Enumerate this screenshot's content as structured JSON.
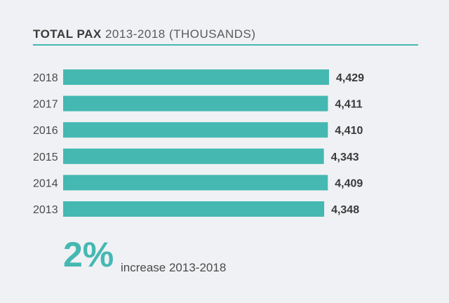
{
  "title": {
    "bold": "TOTAL PAX",
    "rest": "2013-2018 (THOUSANDS)"
  },
  "summary": {
    "value": "2%",
    "caption": "increase 2013-2018"
  },
  "colors": {
    "bar": "#45b8b2",
    "accent": "#45b8b2",
    "text": "#4a4a4a",
    "background": "#f0f1f4"
  },
  "chart_data": {
    "type": "bar",
    "orientation": "horizontal",
    "title": "TOTAL PAX 2013-2018 (THOUSANDS)",
    "categories": [
      "2018",
      "2017",
      "2016",
      "2015",
      "2014",
      "2013"
    ],
    "values": [
      4429,
      4411,
      4410,
      4343,
      4409,
      4348
    ],
    "value_labels": [
      "4,429",
      "4,411",
      "4,410",
      "4,343",
      "4,409",
      "4,348"
    ],
    "xlim": [
      0,
      4429
    ],
    "grid": false,
    "legend": "none"
  }
}
